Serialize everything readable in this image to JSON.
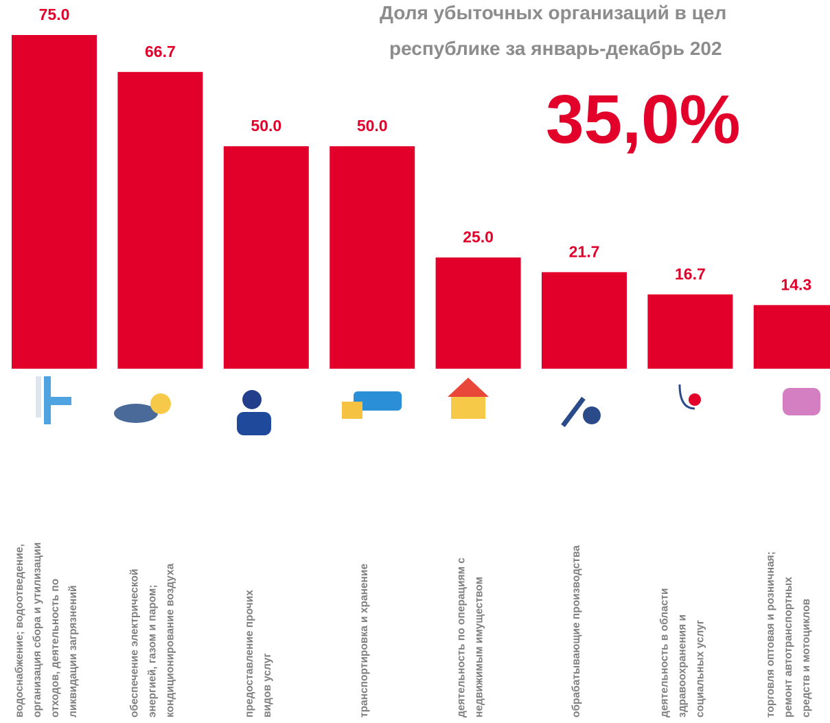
{
  "chart_data": {
    "type": "bar",
    "title": [
      "Доля убыточных организаций в цел",
      "республике за январь-декабрь 202"
    ],
    "annotation": "35,0%",
    "categories": [
      "водоснабжение;  водоотведение,\nорганизация сбора и утилизации\nотходов, деятельность по\nликвидации загрязнений",
      "обеспечение электрической\nэнергией, газом и паром;\nкондиционирование  воздуха",
      "предоставление прочих\nвидов услуг",
      "транспортировка и хранение",
      "деятельность по операциям с\nнедвижимым имуществом",
      "обрабатывающие  производства",
      "деятельность  в области\nздравоохранения и\nсоциальных услуг",
      "торговля оптовая и розничная;\nремонт  автотранспортных\nсредств и мотоциклов"
    ],
    "values": [
      75,
      66.7,
      50,
      50,
      25,
      21.7,
      16.7,
      14.3
    ],
    "value_labels": [
      "75.0",
      "66.7",
      "50.0",
      "50.0",
      "25.0",
      "21.7",
      "16.7",
      "14.3"
    ],
    "color": "#e2002a"
  }
}
